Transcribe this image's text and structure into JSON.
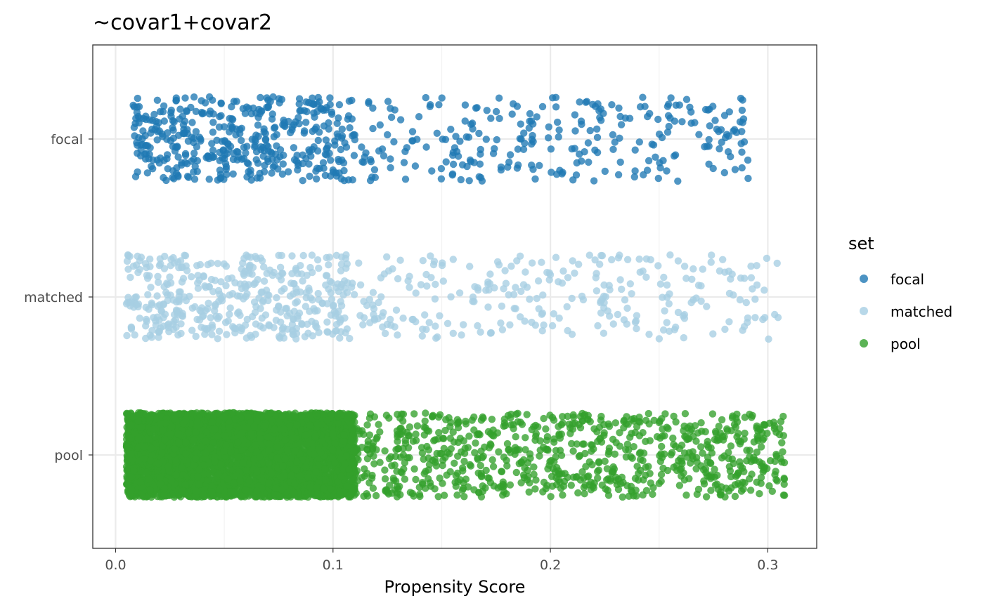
{
  "chart_data": {
    "type": "scatter",
    "title": "~covar1+covar2",
    "xlabel": "Propensity Score",
    "ylabel": "",
    "xlim": [
      -0.0105,
      0.3225
    ],
    "x_ticks": [
      0.0,
      0.1,
      0.2,
      0.3
    ],
    "x_tick_labels": [
      "0.0",
      "0.1",
      "0.2",
      "0.3"
    ],
    "categories": [
      "focal",
      "matched",
      "pool"
    ],
    "jitter_height": 0.27,
    "grid": true,
    "legend": {
      "title": "set",
      "position": "right",
      "entries": [
        "focal",
        "matched",
        "pool"
      ]
    },
    "series": [
      {
        "name": "focal",
        "category": "focal",
        "color": "#1f78b4",
        "count": 700,
        "x_range": [
          0.008,
          0.291
        ],
        "dense_until": 0.11,
        "dense_fraction": 0.62
      },
      {
        "name": "matched",
        "category": "matched",
        "color": "#a6cee3",
        "count": 700,
        "x_range": [
          0.005,
          0.305
        ],
        "dense_until": 0.11,
        "dense_fraction": 0.62
      },
      {
        "name": "pool",
        "category": "pool",
        "color": "#33a02c",
        "count": 6000,
        "x_range": [
          0.005,
          0.308
        ],
        "dense_until": 0.11,
        "dense_fraction": 0.86
      }
    ]
  }
}
